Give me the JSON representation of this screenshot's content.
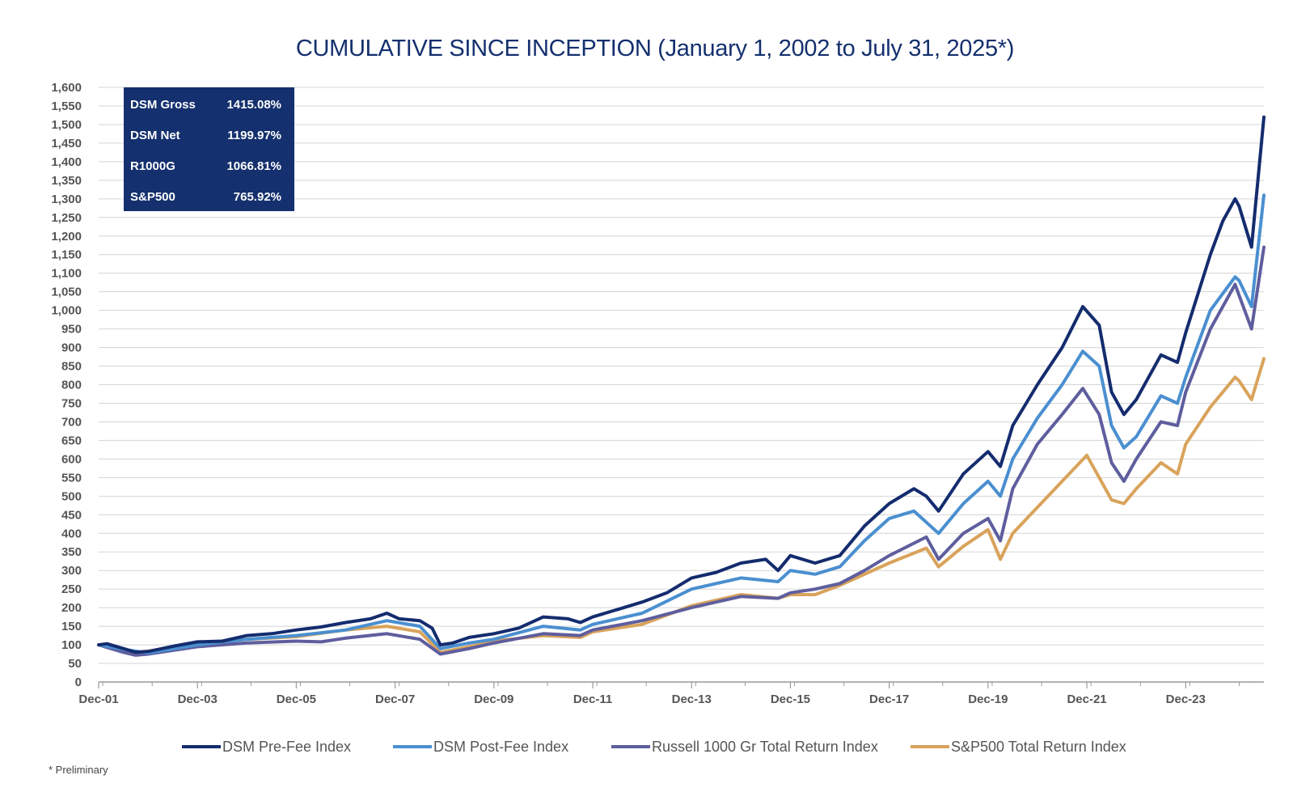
{
  "chart_data": {
    "type": "line",
    "title": "CUMULATIVE SINCE INCEPTION (January 1, 2002 to July 31, 2025*)",
    "footnote": "* Preliminary",
    "xlabel": "",
    "ylabel": "",
    "ylim": [
      0,
      1600
    ],
    "y_ticks": [
      0,
      50,
      100,
      150,
      200,
      250,
      300,
      350,
      400,
      450,
      500,
      550,
      600,
      650,
      700,
      750,
      800,
      850,
      900,
      950,
      1000,
      1050,
      1100,
      1150,
      1200,
      1250,
      1300,
      1350,
      1400,
      1450,
      1500,
      1550,
      1600
    ],
    "y_tick_labels": [
      "0",
      "50",
      "100",
      "150",
      "200",
      "250",
      "300",
      "350",
      "400",
      "450",
      "500",
      "550",
      "600",
      "650",
      "700",
      "750",
      "800",
      "850",
      "900",
      "950",
      "1,000",
      "1,050",
      "1,100",
      "1,150",
      "1,200",
      "1,250",
      "1,300",
      "1,350",
      "1,400",
      "1,450",
      "1,500",
      "1,550",
      "1,600"
    ],
    "x_range": [
      "2001-12",
      "2025-07"
    ],
    "x_ticks": [
      {
        "date": "2001-12",
        "label": "Dec-01"
      },
      {
        "date": "2003-12",
        "label": "Dec-03"
      },
      {
        "date": "2005-12",
        "label": "Dec-05"
      },
      {
        "date": "2007-12",
        "label": "Dec-07"
      },
      {
        "date": "2009-12",
        "label": "Dec-09"
      },
      {
        "date": "2011-12",
        "label": "Dec-11"
      },
      {
        "date": "2013-12",
        "label": "Dec-13"
      },
      {
        "date": "2015-12",
        "label": "Dec-15"
      },
      {
        "date": "2017-12",
        "label": "Dec-17"
      },
      {
        "date": "2019-12",
        "label": "Dec-19"
      },
      {
        "date": "2021-12",
        "label": "Dec-21"
      },
      {
        "date": "2023-12",
        "label": "Dec-23"
      }
    ],
    "grid": "horizontal",
    "legend_position": "bottom",
    "series": [
      {
        "name": "DSM Pre-Fee Index",
        "color": "#142c6e",
        "x": [
          "2001-12",
          "2002-02",
          "2002-06",
          "2002-09",
          "2002-12",
          "2003-06",
          "2003-12",
          "2004-06",
          "2004-12",
          "2005-06",
          "2005-12",
          "2006-06",
          "2006-12",
          "2007-06",
          "2007-10",
          "2008-01",
          "2008-06",
          "2008-09",
          "2008-11",
          "2009-02",
          "2009-06",
          "2009-12",
          "2010-06",
          "2010-12",
          "2011-06",
          "2011-09",
          "2011-12",
          "2012-06",
          "2012-12",
          "2013-06",
          "2013-12",
          "2014-06",
          "2014-12",
          "2015-06",
          "2015-09",
          "2015-12",
          "2016-06",
          "2016-12",
          "2017-06",
          "2017-12",
          "2018-06",
          "2018-09",
          "2018-12",
          "2019-06",
          "2019-12",
          "2020-03",
          "2020-06",
          "2020-12",
          "2021-06",
          "2021-11",
          "2022-03",
          "2022-06",
          "2022-09",
          "2022-12",
          "2023-06",
          "2023-10",
          "2023-12",
          "2024-06",
          "2024-09",
          "2024-12",
          "2025-01",
          "2025-04",
          "2025-07"
        ],
        "values": [
          100,
          103,
          90,
          80,
          82,
          96,
          108,
          110,
          125,
          130,
          140,
          148,
          160,
          170,
          185,
          170,
          165,
          145,
          100,
          105,
          120,
          130,
          145,
          175,
          170,
          160,
          175,
          195,
          215,
          240,
          280,
          295,
          320,
          330,
          300,
          340,
          320,
          340,
          420,
          480,
          520,
          500,
          460,
          560,
          620,
          580,
          690,
          800,
          900,
          1010,
          960,
          780,
          720,
          760,
          880,
          860,
          940,
          1150,
          1240,
          1300,
          1280,
          1170,
          1520
        ]
      },
      {
        "name": "DSM Post-Fee Index",
        "color": "#4a8fd0",
        "x": [
          "2001-12",
          "2002-06",
          "2002-12",
          "2003-12",
          "2004-12",
          "2005-12",
          "2006-12",
          "2007-10",
          "2008-06",
          "2008-11",
          "2009-06",
          "2009-12",
          "2010-12",
          "2011-09",
          "2011-12",
          "2012-12",
          "2013-12",
          "2014-12",
          "2015-09",
          "2015-12",
          "2016-06",
          "2016-12",
          "2017-06",
          "2017-12",
          "2018-06",
          "2018-12",
          "2019-06",
          "2019-12",
          "2020-03",
          "2020-06",
          "2020-12",
          "2021-06",
          "2021-11",
          "2022-03",
          "2022-06",
          "2022-09",
          "2022-12",
          "2023-06",
          "2023-10",
          "2023-12",
          "2024-06",
          "2024-12",
          "2025-01",
          "2025-04",
          "2025-07"
        ],
        "values": [
          100,
          88,
          78,
          100,
          115,
          125,
          140,
          165,
          150,
          90,
          105,
          115,
          150,
          140,
          155,
          185,
          250,
          280,
          270,
          300,
          290,
          310,
          380,
          440,
          460,
          400,
          480,
          540,
          500,
          600,
          710,
          800,
          890,
          850,
          690,
          630,
          660,
          770,
          750,
          820,
          1000,
          1090,
          1080,
          1010,
          1310
        ]
      },
      {
        "name": "Russell 1000 Gr Total Return Index",
        "color": "#5e5e9e",
        "x": [
          "2001-12",
          "2002-06",
          "2002-09",
          "2002-12",
          "2003-12",
          "2004-12",
          "2005-12",
          "2006-06",
          "2006-12",
          "2007-10",
          "2008-06",
          "2008-11",
          "2009-06",
          "2009-12",
          "2010-12",
          "2011-09",
          "2011-12",
          "2012-12",
          "2013-12",
          "2014-12",
          "2015-09",
          "2015-12",
          "2016-06",
          "2016-12",
          "2017-06",
          "2017-12",
          "2018-09",
          "2018-12",
          "2019-06",
          "2019-12",
          "2020-03",
          "2020-06",
          "2020-12",
          "2021-06",
          "2021-11",
          "2022-03",
          "2022-06",
          "2022-09",
          "2022-12",
          "2023-06",
          "2023-10",
          "2023-12",
          "2024-06",
          "2024-12",
          "2025-01",
          "2025-04",
          "2025-07"
        ],
        "values": [
          100,
          80,
          72,
          75,
          95,
          105,
          110,
          108,
          118,
          130,
          115,
          75,
          90,
          105,
          130,
          125,
          140,
          165,
          200,
          230,
          225,
          240,
          250,
          265,
          300,
          340,
          390,
          330,
          400,
          440,
          380,
          520,
          640,
          720,
          790,
          720,
          590,
          540,
          600,
          700,
          690,
          780,
          950,
          1070,
          1040,
          950,
          1170
        ]
      },
      {
        "name": "S&P500 Total Return Index",
        "color": "#d9a35b",
        "x": [
          "2001-12",
          "2002-06",
          "2002-09",
          "2002-12",
          "2003-12",
          "2004-12",
          "2005-12",
          "2006-12",
          "2007-10",
          "2008-06",
          "2008-11",
          "2009-06",
          "2009-12",
          "2010-12",
          "2011-09",
          "2011-12",
          "2012-12",
          "2013-12",
          "2014-12",
          "2015-09",
          "2015-12",
          "2016-06",
          "2016-12",
          "2017-06",
          "2017-12",
          "2018-09",
          "2018-12",
          "2019-06",
          "2019-12",
          "2020-03",
          "2020-06",
          "2020-12",
          "2021-06",
          "2021-12",
          "2022-06",
          "2022-09",
          "2022-12",
          "2023-06",
          "2023-10",
          "2023-12",
          "2024-06",
          "2024-12",
          "2025-01",
          "2025-04",
          "2025-07"
        ],
        "values": [
          100,
          88,
          80,
          83,
          103,
          115,
          122,
          140,
          150,
          135,
          80,
          95,
          110,
          125,
          120,
          135,
          155,
          205,
          235,
          225,
          235,
          235,
          260,
          290,
          320,
          360,
          310,
          365,
          410,
          330,
          400,
          470,
          540,
          610,
          490,
          480,
          520,
          590,
          560,
          640,
          740,
          820,
          810,
          760,
          870
        ]
      }
    ],
    "summary_box": {
      "bg_color": "#14306e",
      "rows": [
        {
          "label": "DSM Gross",
          "value": "1415.08%"
        },
        {
          "label": "DSM Net",
          "value": "1199.97%"
        },
        {
          "label": "R1000G",
          "value": "1066.81%"
        },
        {
          "label": "S&P500",
          "value": "765.92%"
        }
      ]
    }
  }
}
